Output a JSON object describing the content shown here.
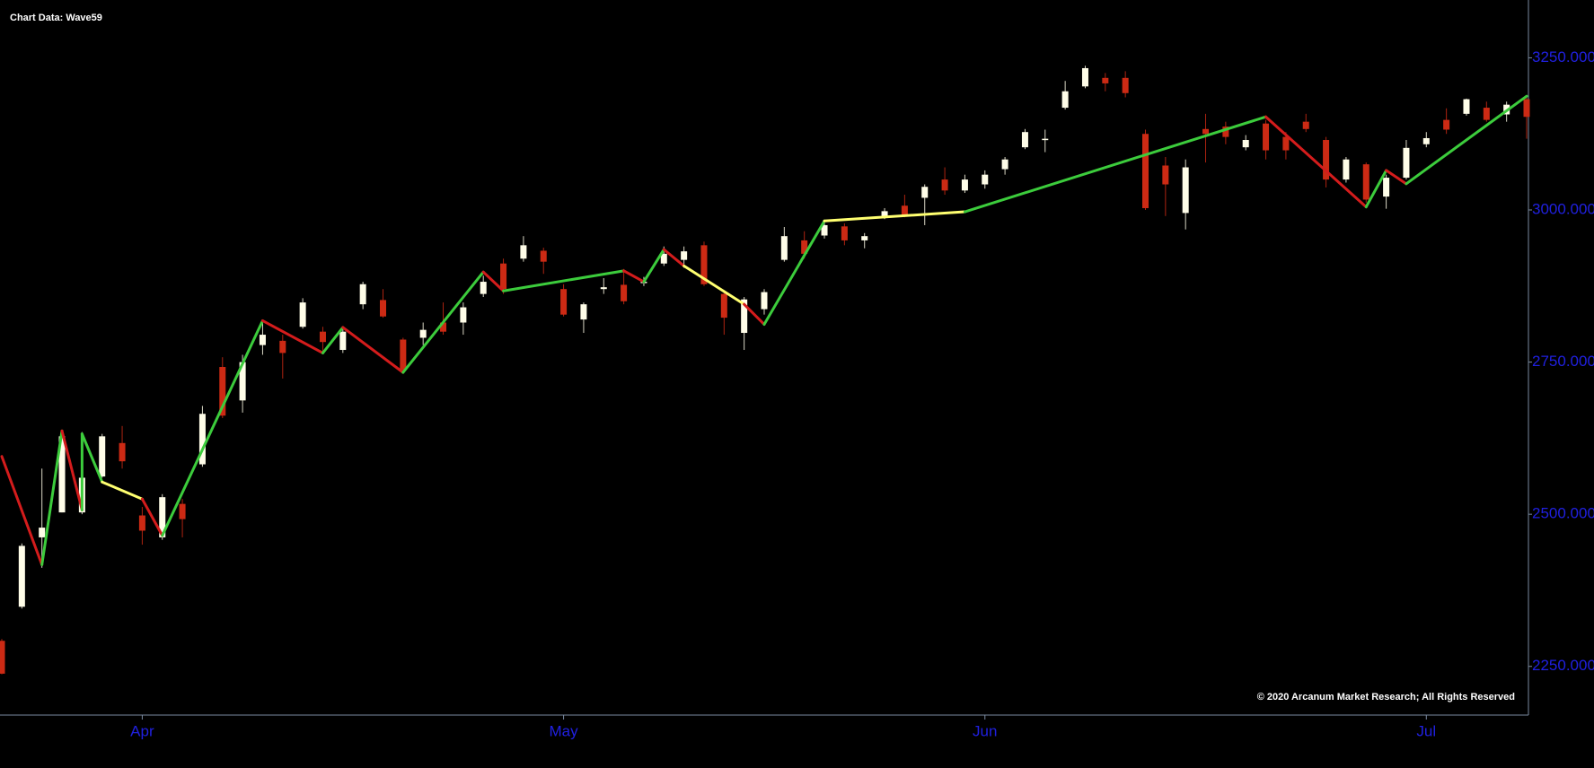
{
  "chart_data": {
    "type": "candlestick",
    "title": "Chart Data: Wave59",
    "annotation": "© 2020 Arcanum Market Research; All Rights Reserved",
    "categories": [
      null,
      null,
      null,
      null,
      null,
      null,
      null,
      "Apr",
      null,
      null,
      null,
      null,
      null,
      null,
      null,
      null,
      null,
      null,
      null,
      null,
      null,
      null,
      null,
      null,
      null,
      null,
      null,
      null,
      "May",
      null,
      null,
      null,
      null,
      null,
      null,
      null,
      null,
      null,
      null,
      null,
      null,
      null,
      null,
      null,
      null,
      null,
      null,
      null,
      null,
      "Jun",
      null,
      null,
      null,
      null,
      null,
      null,
      null,
      null,
      null,
      null,
      null,
      null,
      null,
      null,
      null,
      null,
      null,
      null,
      null,
      null,
      null,
      "Jul",
      null,
      null,
      null,
      null,
      null
    ],
    "open": [
      2292,
      2348,
      2462,
      2503,
      2503,
      2562,
      2617,
      2498,
      2462,
      2517,
      2582,
      2742,
      2687,
      2778,
      2785,
      2808,
      2800,
      2770,
      2845,
      2852,
      2787,
      2790,
      2815,
      2815,
      2862,
      2912,
      2920,
      2933,
      2870,
      2820,
      2870,
      2877,
      2880,
      2912,
      2918,
      2942,
      2862,
      2798,
      2837,
      2918,
      2950,
      2958,
      2973,
      2950,
      2990,
      3007,
      3020,
      3050,
      3032,
      3042,
      3067,
      3103,
      3115,
      3168,
      3203,
      3217,
      3217,
      3125,
      3073,
      2995,
      3133,
      3137,
      3103,
      3142,
      3120,
      3145,
      3115,
      3050,
      3075,
      3022,
      3053,
      3108,
      3148,
      3158,
      3168,
      3157,
      3182
    ],
    "high": [
      2295,
      2452,
      2575,
      2637,
      2635,
      2632,
      2645,
      2512,
      2533,
      2525,
      2678,
      2758,
      2762,
      2815,
      2795,
      2855,
      2808,
      2805,
      2882,
      2870,
      2790,
      2815,
      2848,
      2848,
      2892,
      2920,
      2957,
      2938,
      2878,
      2848,
      2888,
      2903,
      2890,
      2940,
      2940,
      2948,
      2867,
      2857,
      2870,
      2972,
      2965,
      2982,
      2978,
      2962,
      3003,
      3025,
      3042,
      3070,
      3058,
      3065,
      3087,
      3133,
      3132,
      3212,
      3237,
      3225,
      3228,
      3132,
      3087,
      3083,
      3158,
      3145,
      3123,
      3148,
      3128,
      3158,
      3120,
      3087,
      3078,
      3058,
      3115,
      3128,
      3167,
      3183,
      3178,
      3178,
      3187
    ],
    "low": [
      2237,
      2345,
      2412,
      2503,
      2500,
      2560,
      2575,
      2450,
      2458,
      2462,
      2578,
      2658,
      2667,
      2762,
      2723,
      2805,
      2767,
      2765,
      2837,
      2823,
      2732,
      2778,
      2795,
      2795,
      2857,
      2862,
      2915,
      2895,
      2825,
      2798,
      2862,
      2845,
      2875,
      2908,
      2905,
      2875,
      2795,
      2770,
      2828,
      2915,
      2920,
      2953,
      2942,
      2937,
      2985,
      2988,
      2975,
      3025,
      3028,
      3035,
      3058,
      3100,
      3095,
      3165,
      3200,
      3195,
      3185,
      3000,
      2990,
      2968,
      3078,
      3108,
      3098,
      3083,
      3083,
      3128,
      3037,
      3045,
      3012,
      3002,
      3050,
      3103,
      3125,
      3155,
      3145,
      3145,
      3117
    ],
    "close": [
      2238,
      2448,
      2478,
      2628,
      2560,
      2628,
      2587,
      2473,
      2528,
      2492,
      2665,
      2662,
      2750,
      2795,
      2765,
      2848,
      2783,
      2800,
      2878,
      2825,
      2737,
      2803,
      2800,
      2840,
      2882,
      2870,
      2942,
      2915,
      2828,
      2845,
      2873,
      2850,
      2882,
      2928,
      2932,
      2878,
      2823,
      2853,
      2865,
      2957,
      2928,
      2975,
      2950,
      2957,
      2998,
      2992,
      3038,
      3032,
      3050,
      3058,
      3083,
      3128,
      3117,
      3195,
      3233,
      3208,
      3192,
      3003,
      3042,
      3070,
      3125,
      3120,
      3115,
      3098,
      3098,
      3133,
      3050,
      3083,
      3017,
      3053,
      3102,
      3118,
      3132,
      3182,
      3148,
      3173,
      3153
    ],
    "up_color": "#fffde8",
    "down_color": "#cc2a14",
    "wave": {
      "x": [
        0,
        2,
        3,
        4,
        4,
        5,
        7,
        8,
        13,
        16,
        17,
        20,
        24,
        25,
        31,
        32,
        33,
        34,
        37,
        38,
        41,
        48,
        63,
        68,
        69,
        70,
        76
      ],
      "values": [
        2595,
        2417,
        2637,
        2507,
        2632,
        2553,
        2525,
        2465,
        2818,
        2765,
        2807,
        2733,
        2898,
        2867,
        2900,
        2882,
        2935,
        2908,
        2845,
        2812,
        2982,
        2997,
        3153,
        3005,
        3065,
        3043,
        3187
      ],
      "segment_colors": [
        "#d41c1c",
        "#3ccc3c",
        "#d41c1c",
        "#3ccc3c",
        "#3ccc3c",
        "#ffff70",
        "#d41c1c",
        "#3ccc3c",
        "#d41c1c",
        "#3ccc3c",
        "#d41c1c",
        "#3ccc3c",
        "#d41c1c",
        "#3ccc3c",
        "#d41c1c",
        "#3ccc3c",
        "#d41c1c",
        "#ffff70",
        "#d41c1c",
        "#3ccc3c",
        "#ffff70",
        "#3ccc3c",
        "#d41c1c",
        "#3ccc3c",
        "#d41c1c",
        "#3ccc3c"
      ]
    },
    "ylim": [
      2170,
      3345
    ],
    "yticks": [
      {
        "value": 2250,
        "label": "2250.000"
      },
      {
        "value": 2500,
        "label": "2500.000"
      },
      {
        "value": 2750,
        "label": "2750.000"
      },
      {
        "value": 3000,
        "label": "3000.000"
      },
      {
        "value": 3250,
        "label": "3250.000"
      }
    ],
    "axis_color": "#7a8aa0",
    "label_color": "#2020e0"
  }
}
